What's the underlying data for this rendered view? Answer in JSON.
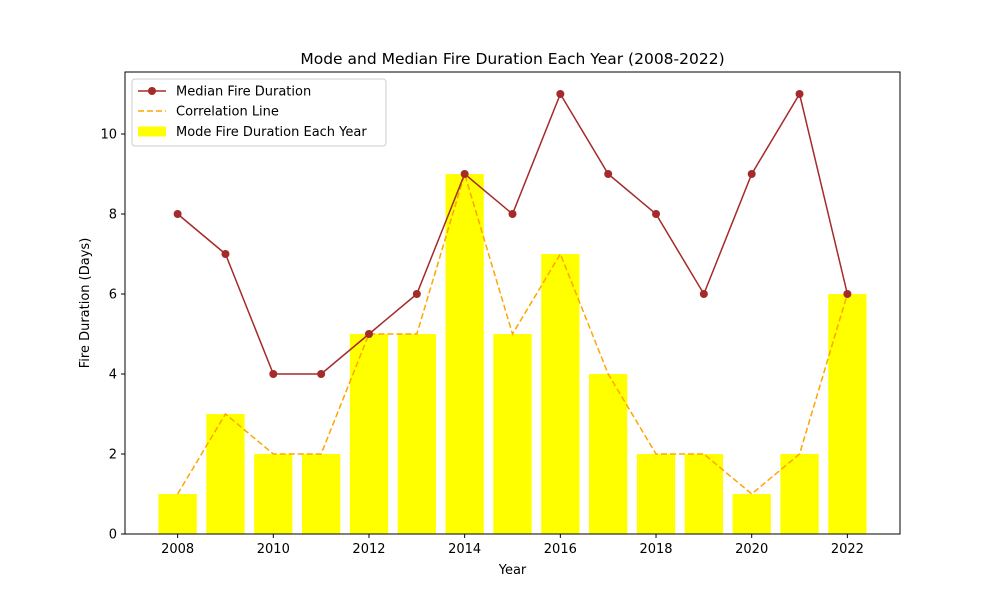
{
  "chart_data": {
    "type": "bar",
    "title": "Mode and Median Fire Duration Each Year (2008-2022)",
    "xlabel": "Year",
    "ylabel": "Fire Duration (Days)",
    "x": [
      2008,
      2009,
      2010,
      2011,
      2012,
      2013,
      2014,
      2015,
      2016,
      2017,
      2018,
      2019,
      2020,
      2021,
      2022
    ],
    "xticks": [
      "2008",
      "2010",
      "2012",
      "2014",
      "2016",
      "2018",
      "2020",
      "2022"
    ],
    "yticks": [
      "0",
      "2",
      "4",
      "6",
      "8",
      "10"
    ],
    "xlim": [
      2006.9,
      2023.1
    ],
    "ylim": [
      0,
      11.55
    ],
    "grid": false,
    "legend_position": "top-left",
    "series": [
      {
        "name": "Median Fire Duration",
        "kind": "line",
        "marker": "circle",
        "color": "#a52a2a",
        "values": [
          8,
          7,
          4,
          4,
          5,
          6,
          9,
          8,
          11,
          9,
          8,
          6,
          9,
          11,
          6
        ]
      },
      {
        "name": "Correlation Line",
        "kind": "line",
        "style": "dashed",
        "color": "#ffa500",
        "values": [
          1,
          3,
          2,
          2,
          5,
          5,
          9,
          5,
          7,
          4,
          2,
          2,
          1,
          2,
          6
        ]
      },
      {
        "name": "Mode Fire Duration Each Year",
        "kind": "bar",
        "color": "#ffff00",
        "values": [
          1,
          3,
          2,
          2,
          5,
          5,
          9,
          5,
          7,
          4,
          2,
          2,
          1,
          2,
          6
        ]
      }
    ]
  }
}
